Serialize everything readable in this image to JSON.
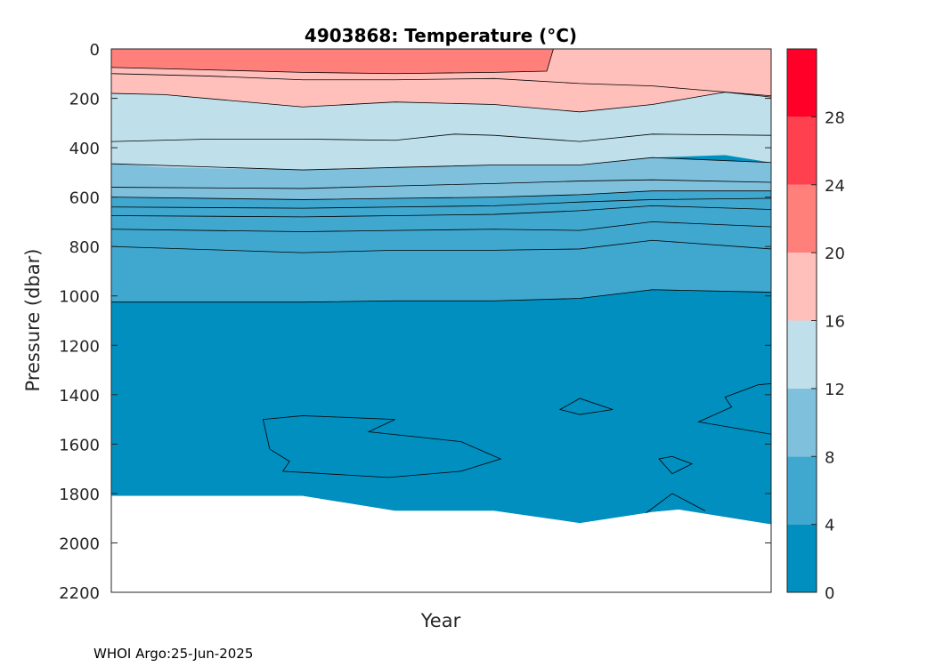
{
  "chart_data": {
    "type": "filled-contour",
    "title": "4903868:  Temperature (°C)",
    "xlabel": "Year",
    "ylabel": "Pressure (dbar)",
    "ylim": [
      0,
      2200
    ],
    "y_reversed": true,
    "yticks": [
      0,
      200,
      400,
      600,
      800,
      1000,
      1200,
      1400,
      1600,
      1800,
      2000,
      2200
    ],
    "x_position": [
      0,
      1
    ],
    "colorbar": {
      "range": [
        0,
        32
      ],
      "ticks": [
        0,
        4,
        8,
        12,
        16,
        20,
        24,
        28
      ],
      "levels": [
        {
          "min": 0,
          "max": 4,
          "color": "#008fbf"
        },
        {
          "min": 4,
          "max": 8,
          "color": "#40a7cf"
        },
        {
          "min": 8,
          "max": 12,
          "color": "#7fc0dc"
        },
        {
          "min": 12,
          "max": 16,
          "color": "#bfdfeb"
        },
        {
          "min": 16,
          "max": 20,
          "color": "#ffbfbb"
        },
        {
          "min": 20,
          "max": 24,
          "color": "#ff7f7b"
        },
        {
          "min": 24,
          "max": 28,
          "color": "#ff404e"
        },
        {
          "min": 28,
          "max": 32,
          "color": "#ff0028"
        }
      ]
    },
    "data_bottom": {
      "x": [
        0,
        0.29,
        0.43,
        0.58,
        0.71,
        0.82,
        0.86,
        1.0
      ],
      "pressure": [
        1810,
        1810,
        1870,
        1870,
        1920,
        1875,
        1865,
        1925
      ]
    },
    "band_fill_boundaries": [
      {
        "level_color": "#ff7f7b",
        "x": [
          0,
          0.29,
          0.43,
          0.58,
          0.66,
          0.67
        ],
        "upper_pressure": [
          0,
          0,
          0,
          0,
          0,
          0
        ],
        "lower_pressure": [
          75,
          95,
          100,
          95,
          90,
          0
        ]
      },
      {
        "level_color": "#bfdfeb",
        "x": [
          0,
          0.08,
          0.29,
          0.43,
          0.58,
          0.71,
          0.82,
          0.93,
          1.0
        ],
        "upper_pressure": [
          180,
          185,
          235,
          215,
          225,
          255,
          225,
          175,
          195
        ],
        "lower_pressure": [
          465,
          480,
          490,
          480,
          470,
          470,
          440,
          430,
          460
        ]
      },
      {
        "level_color": "#7fc0dc",
        "x": [
          0,
          0.29,
          0.43,
          0.58,
          0.71,
          0.82,
          1.0
        ],
        "upper_pressure": [
          465,
          490,
          480,
          470,
          470,
          440,
          460
        ],
        "lower_pressure": [
          600,
          610,
          605,
          600,
          590,
          575,
          575
        ]
      },
      {
        "level_color": "#40a7cf",
        "x": [
          0,
          0.29,
          0.43,
          0.58,
          0.71,
          0.82,
          1.0
        ],
        "upper_pressure": [
          600,
          610,
          605,
          600,
          590,
          575,
          575
        ],
        "lower_pressure": [
          1025,
          1025,
          1020,
          1020,
          1010,
          975,
          985
        ]
      }
    ],
    "contour_lines": [
      {
        "x": [
          0,
          0.08,
          0.29,
          0.43,
          0.58,
          0.66,
          0.67
        ],
        "pressure": [
          75,
          80,
          95,
          100,
          95,
          90,
          0
        ]
      },
      {
        "x": [
          0,
          0.15,
          0.29,
          0.43,
          0.58,
          0.71,
          0.82,
          1.0
        ],
        "pressure": [
          100,
          110,
          125,
          125,
          120,
          140,
          150,
          190
        ]
      },
      {
        "x": [
          0,
          0.08,
          0.29,
          0.43,
          0.58,
          0.71,
          0.82,
          0.93,
          1.0
        ],
        "pressure": [
          180,
          185,
          235,
          215,
          225,
          255,
          225,
          175,
          195
        ]
      },
      {
        "x": [
          0,
          0.15,
          0.29,
          0.43,
          0.52,
          0.58,
          0.71,
          0.82,
          1.0
        ],
        "pressure": [
          375,
          365,
          365,
          370,
          345,
          350,
          375,
          345,
          350
        ]
      },
      {
        "x": [
          0,
          0.29,
          0.43,
          0.58,
          0.71,
          0.82,
          1.0
        ],
        "pressure": [
          465,
          490,
          480,
          470,
          470,
          440,
          460
        ]
      },
      {
        "x": [
          0,
          0.29,
          0.43,
          0.58,
          0.71,
          0.82,
          1.0
        ],
        "pressure": [
          560,
          565,
          555,
          545,
          535,
          530,
          540
        ]
      },
      {
        "x": [
          0,
          0.29,
          0.43,
          0.58,
          0.71,
          0.82,
          1.0
        ],
        "pressure": [
          600,
          610,
          605,
          600,
          590,
          575,
          575
        ]
      },
      {
        "x": [
          0,
          0.29,
          0.43,
          0.58,
          0.71,
          0.82,
          1.0
        ],
        "pressure": [
          640,
          645,
          640,
          635,
          620,
          610,
          605
        ]
      },
      {
        "x": [
          0,
          0.29,
          0.43,
          0.58,
          0.71,
          0.82,
          1.0
        ],
        "pressure": [
          675,
          680,
          675,
          670,
          655,
          635,
          650
        ]
      },
      {
        "x": [
          0,
          0.29,
          0.43,
          0.58,
          0.71,
          0.82,
          1.0
        ],
        "pressure": [
          730,
          740,
          735,
          730,
          735,
          700,
          720
        ]
      },
      {
        "x": [
          0,
          0.29,
          0.43,
          0.58,
          0.71,
          0.82,
          1.0
        ],
        "pressure": [
          800,
          825,
          815,
          815,
          810,
          775,
          810
        ]
      },
      {
        "x": [
          0,
          0.29,
          0.43,
          0.58,
          0.71,
          0.82,
          1.0
        ],
        "pressure": [
          1025,
          1025,
          1020,
          1020,
          1010,
          975,
          985
        ]
      },
      {
        "x": [
          0.23,
          0.29,
          0.43,
          0.39,
          0.53,
          0.59,
          0.53,
          0.42,
          0.26,
          0.27,
          0.24,
          0.23
        ],
        "pressure": [
          1500,
          1485,
          1500,
          1550,
          1590,
          1660,
          1710,
          1735,
          1710,
          1670,
          1620,
          1500
        ],
        "closed": true
      },
      {
        "x": [
          0.68,
          0.71,
          0.76,
          0.71,
          0.68
        ],
        "pressure": [
          1460,
          1415,
          1460,
          1480,
          1460
        ],
        "closed": true
      },
      {
        "x": [
          0.83,
          0.85,
          0.88,
          0.85,
          0.83
        ],
        "pressure": [
          1660,
          1650,
          1680,
          1720,
          1660
        ],
        "closed": true
      },
      {
        "x": [
          1.0,
          0.98,
          0.93,
          0.94,
          0.89,
          1.0
        ],
        "pressure": [
          1355,
          1360,
          1410,
          1450,
          1510,
          1560
        ]
      },
      {
        "x": [
          0.81,
          0.85,
          0.9
        ],
        "pressure": [
          1880,
          1800,
          1870
        ]
      }
    ]
  },
  "footer": "WHOI Argo:25-Jun-2025"
}
